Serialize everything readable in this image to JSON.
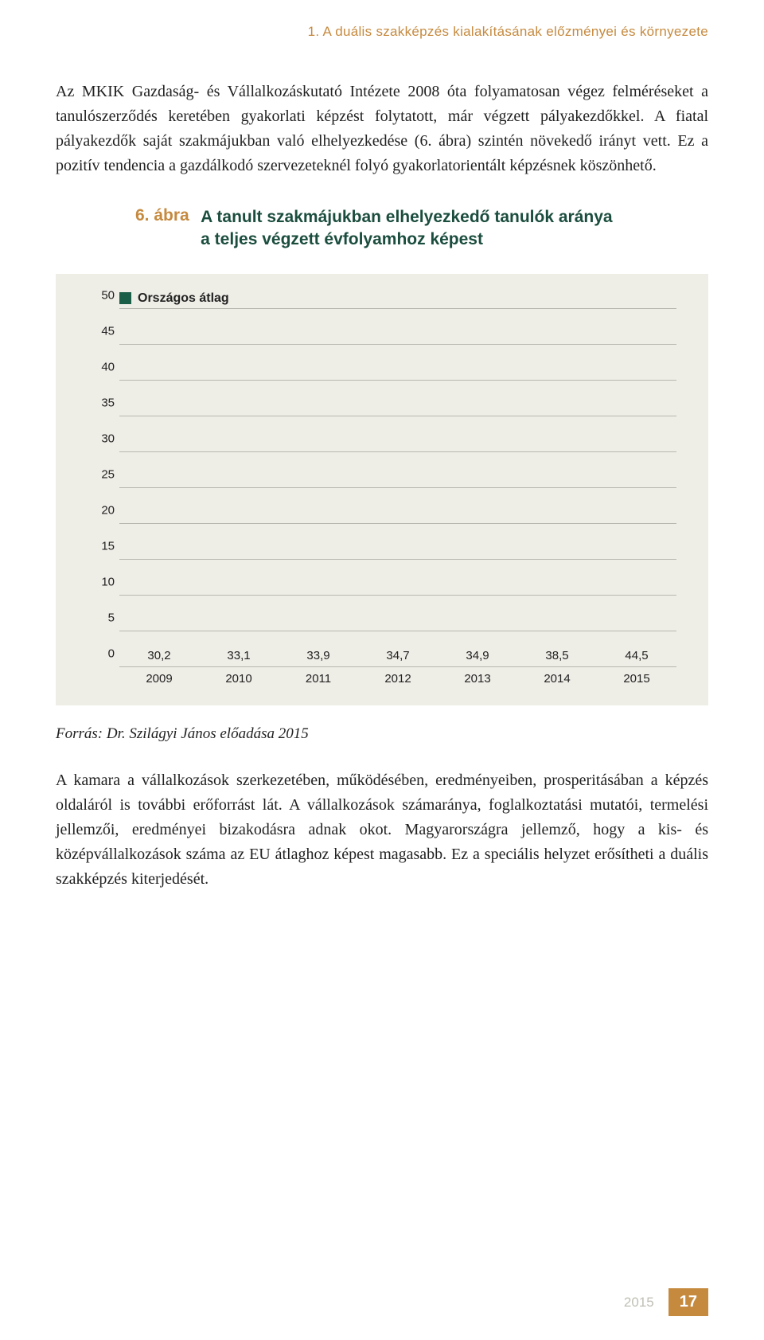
{
  "header": "1. A duális szakképzés kialakításának előzményei és környezete",
  "para1": "Az MKIK Gazdaság- és Vállalkozáskutató Intézete 2008 óta folyamatosan végez felméréseket a tanulószerződés keretében gyakorlati képzést folytatott, már végzett pályakezdőkkel. A fiatal pályakezdők saját szakmájukban való elhelyezkedése (6. ábra) szintén növekedő irányt vett. Ez a pozitív tendencia a gazdálkodó szervezeteknél folyó gyakorlatorientált képzésnek köszönhető.",
  "chart": {
    "title_num": "6. ábra",
    "title_text_1": "A tanult szakmájukban elhelyezkedő tanulók aránya",
    "title_text_2": "a teljes végzett évfolyamhoz képest",
    "legend_label": "Országos átlag",
    "bar_color": "#1b5e48",
    "legend_color": "#1b5e48",
    "bg_color": "#eeede6",
    "grid_color": "#b9b8b0",
    "ymax": 50,
    "ystep": 5,
    "y_ticks": [
      "0",
      "5",
      "10",
      "15",
      "20",
      "25",
      "30",
      "35",
      "40",
      "45",
      "50"
    ],
    "categories": [
      "2009",
      "2010",
      "2011",
      "2012",
      "2013",
      "2014",
      "2015"
    ],
    "values": [
      30.2,
      33.1,
      33.9,
      34.7,
      34.9,
      38.5,
      44.5
    ],
    "labels": [
      "30,2",
      "33,1",
      "33,9",
      "34,7",
      "34,9",
      "38,5",
      "44,5"
    ]
  },
  "source": "Forrás: Dr. Szilágyi János előadása 2015",
  "para2": "A kamara a vállalkozások szerkezetében, működésében, eredményeiben, prosperitásában a képzés oldaláról is további erőforrást lát. A vállalkozások számaránya, foglalkoztatási mutatói, termelési jellemzői, eredményei bizakodásra adnak okot. Magyarországra jellemző, hogy a kis- és középvállalkozások száma az EU átlaghoz képest magasabb. Ez a speciális helyzet erősítheti a duális szakképzés kiterjedését.",
  "footer_year": "2015",
  "footer_page": "17"
}
